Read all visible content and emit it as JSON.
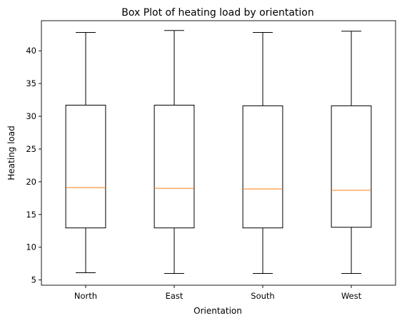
{
  "chart_data": {
    "type": "box",
    "title": "Box Plot of heating load by orientation",
    "xlabel": "Orientation",
    "ylabel": "Heating load",
    "categories": [
      "North",
      "East",
      "South",
      "West"
    ],
    "ylim": [
      4.2,
      44.6
    ],
    "yticks": [
      5,
      10,
      15,
      20,
      25,
      30,
      35,
      40
    ],
    "grid": false,
    "boxes": [
      {
        "category": "North",
        "whisker_low": 6.1,
        "q1": 12.95,
        "median": 19.1,
        "q3": 31.7,
        "whisker_high": 42.8
      },
      {
        "category": "East",
        "whisker_low": 6.0,
        "q1": 12.95,
        "median": 19.0,
        "q3": 31.7,
        "whisker_high": 43.1
      },
      {
        "category": "South",
        "whisker_low": 6.0,
        "q1": 12.95,
        "median": 18.9,
        "q3": 31.6,
        "whisker_high": 42.8
      },
      {
        "category": "West",
        "whisker_low": 6.0,
        "q1": 13.05,
        "median": 18.7,
        "q3": 31.6,
        "whisker_high": 43.0
      }
    ],
    "colors": {
      "box": "#000000",
      "median": "#ff7f0e"
    }
  }
}
